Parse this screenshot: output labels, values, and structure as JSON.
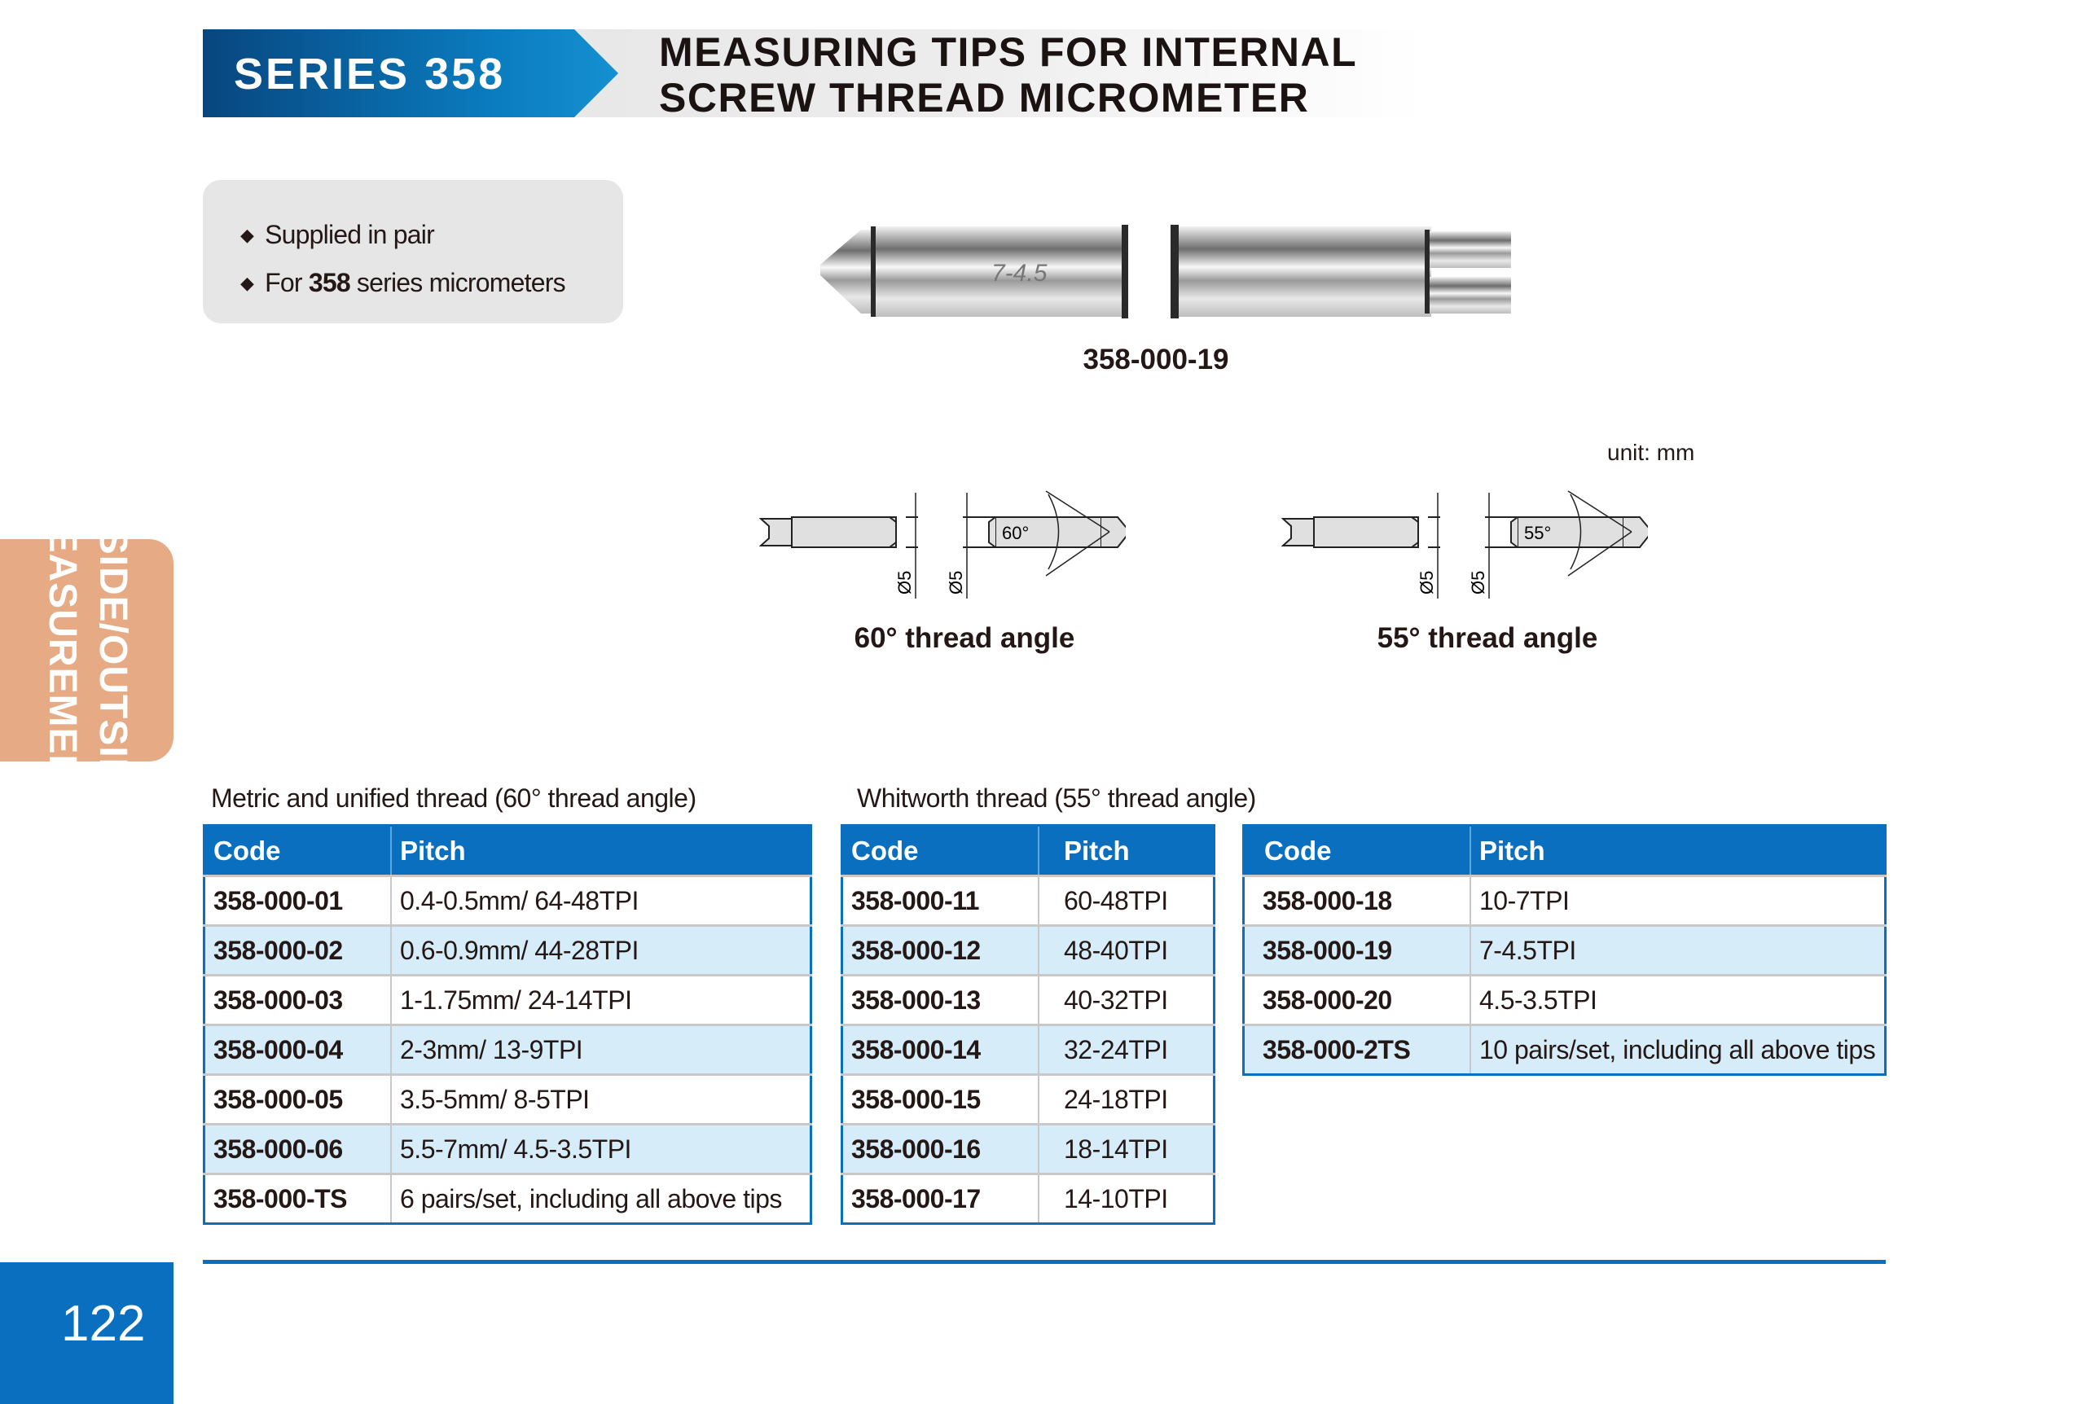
{
  "header": {
    "series": "SERIES 358",
    "title_line1": "MEASURING TIPS FOR INTERNAL",
    "title_line2": "SCREW THREAD MICROMETER"
  },
  "info": {
    "item1": "Supplied in pair",
    "item2_pre": "For ",
    "item2_bold": "358",
    "item2_post": " series micrometers"
  },
  "photo": {
    "caption": "358-000-19",
    "engraving": "7-4.5"
  },
  "diagrams": {
    "unit": "unit: mm",
    "left": {
      "angle": "60°",
      "dia": "Ø5",
      "caption": "60° thread angle"
    },
    "right": {
      "angle": "55°",
      "dia": "Ø5",
      "caption": "55° thread angle"
    }
  },
  "side_tab": {
    "line1": "INSIDE/OUTSIDE",
    "line2": "MEASUREMENT"
  },
  "tables": [
    {
      "caption": "Metric and unified thread (60° thread angle)",
      "headers": [
        "Code",
        "Pitch"
      ],
      "rows": [
        [
          "358-000-01",
          "0.4-0.5mm/ 64-48TPI"
        ],
        [
          "358-000-02",
          "0.6-0.9mm/ 44-28TPI"
        ],
        [
          "358-000-03",
          "1-1.75mm/ 24-14TPI"
        ],
        [
          "358-000-04",
          "2-3mm/ 13-9TPI"
        ],
        [
          "358-000-05",
          "3.5-5mm/ 8-5TPI"
        ],
        [
          "358-000-06",
          "5.5-7mm/ 4.5-3.5TPI"
        ],
        [
          "358-000-TS",
          "6 pairs/set, including all above tips"
        ]
      ]
    },
    {
      "caption": "Whitworth thread (55° thread angle)",
      "headers": [
        "Code",
        "Pitch"
      ],
      "rows": [
        [
          "358-000-11",
          "60-48TPI"
        ],
        [
          "358-000-12",
          "48-40TPI"
        ],
        [
          "358-000-13",
          "40-32TPI"
        ],
        [
          "358-000-14",
          "32-24TPI"
        ],
        [
          "358-000-15",
          "24-18TPI"
        ],
        [
          "358-000-16",
          "18-14TPI"
        ],
        [
          "358-000-17",
          "14-10TPI"
        ]
      ]
    },
    {
      "caption": "",
      "headers": [
        "Code",
        "Pitch"
      ],
      "rows": [
        [
          "358-000-18",
          "10-7TPI"
        ],
        [
          "358-000-19",
          "7-4.5TPI"
        ],
        [
          "358-000-20",
          "4.5-3.5TPI"
        ],
        [
          "358-000-2TS",
          "10 pairs/set, including all above tips"
        ]
      ]
    }
  ],
  "page_number": "122",
  "colors": {
    "brand_blue": "#0a6fbf",
    "row_alt": "#d6ecf9",
    "tab": "#e6ab85"
  }
}
